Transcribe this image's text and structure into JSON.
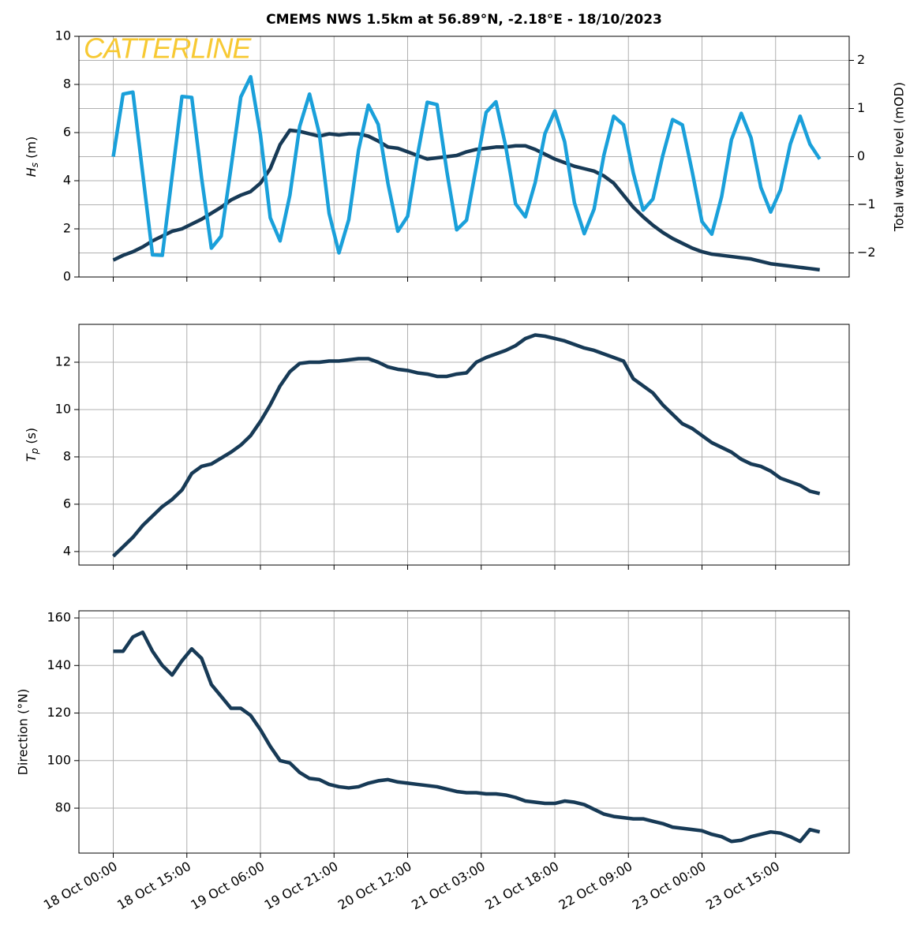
{
  "chart_data": [
    {
      "type": "line",
      "title": "CMEMS NWS 1.5km at 56.89°N, -2.18°E - 18/10/2023",
      "annotation": "CATTERLINE",
      "annotation_color": "#f7c933",
      "ylabel": "Hs (m)",
      "y2label": "Total water level (mOD)",
      "grid": true,
      "x": [
        "18 Oct 00:00",
        "18 Oct 02:00",
        "18 Oct 04:00",
        "18 Oct 06:00",
        "18 Oct 08:00",
        "18 Oct 10:00",
        "18 Oct 12:00",
        "18 Oct 14:00",
        "18 Oct 16:00",
        "18 Oct 18:00",
        "18 Oct 20:00",
        "18 Oct 22:00",
        "19 Oct 00:00",
        "19 Oct 02:00",
        "19 Oct 04:00",
        "19 Oct 06:00",
        "19 Oct 08:00",
        "19 Oct 10:00",
        "19 Oct 12:00",
        "19 Oct 14:00",
        "19 Oct 16:00",
        "19 Oct 18:00",
        "19 Oct 20:00",
        "19 Oct 22:00",
        "20 Oct 00:00",
        "20 Oct 02:00",
        "20 Oct 04:00",
        "20 Oct 06:00",
        "20 Oct 08:00",
        "20 Oct 10:00",
        "20 Oct 12:00",
        "20 Oct 14:00",
        "20 Oct 16:00",
        "20 Oct 18:00",
        "20 Oct 20:00",
        "20 Oct 22:00",
        "21 Oct 00:00",
        "21 Oct 02:00",
        "21 Oct 04:00",
        "21 Oct 06:00",
        "21 Oct 08:00",
        "21 Oct 10:00",
        "21 Oct 12:00",
        "21 Oct 14:00",
        "21 Oct 16:00",
        "21 Oct 18:00",
        "21 Oct 20:00",
        "21 Oct 22:00",
        "22 Oct 00:00",
        "22 Oct 02:00",
        "22 Oct 04:00",
        "22 Oct 06:00",
        "22 Oct 08:00",
        "22 Oct 10:00",
        "22 Oct 12:00",
        "22 Oct 14:00",
        "22 Oct 16:00",
        "22 Oct 18:00",
        "22 Oct 20:00",
        "22 Oct 22:00",
        "23 Oct 00:00",
        "23 Oct 02:00",
        "23 Oct 04:00",
        "23 Oct 06:00",
        "23 Oct 08:00",
        "23 Oct 10:00",
        "23 Oct 12:00",
        "23 Oct 14:00",
        "23 Oct 16:00",
        "23 Oct 18:00",
        "23 Oct 20:00",
        "23 Oct 22:00",
        "24 Oct 00:00"
      ],
      "xlim": [
        "17 Oct 17:00",
        "24 Oct 06:00"
      ],
      "xticks": [
        "18 Oct 00:00",
        "18 Oct 15:00",
        "19 Oct 06:00",
        "19 Oct 21:00",
        "20 Oct 12:00",
        "21 Oct 03:00",
        "21 Oct 18:00",
        "22 Oct 09:00",
        "23 Oct 00:00",
        "23 Oct 15:00"
      ],
      "ylim": [
        0,
        10
      ],
      "yticks": [
        0,
        2,
        4,
        6,
        8,
        10
      ],
      "y2lim": [
        -2.5,
        2.5
      ],
      "y2ticks": [
        {
          "value": -2,
          "label": "−2"
        },
        {
          "value": -1,
          "label": "−1"
        },
        0,
        1,
        2
      ],
      "series": [
        {
          "color": "#173a56",
          "values": [
            0.7,
            0.9,
            1.05,
            1.25,
            1.5,
            1.7,
            1.9,
            2.0,
            2.2,
            2.4,
            2.65,
            2.9,
            3.2,
            3.4,
            3.55,
            3.9,
            4.5,
            5.5,
            6.1,
            6.05,
            5.95,
            5.85,
            5.95,
            5.9,
            5.95,
            5.95,
            5.85,
            5.65,
            5.4,
            5.35,
            5.2,
            5.05,
            4.9,
            4.95,
            5.0,
            5.05,
            5.2,
            5.3,
            5.35,
            5.4,
            5.4,
            5.45,
            5.45,
            5.3,
            5.1,
            4.9,
            4.75,
            4.6,
            4.5,
            4.4,
            4.2,
            3.9,
            3.4,
            2.9,
            2.5,
            2.15,
            1.85,
            1.6,
            1.4,
            1.2,
            1.05,
            0.95,
            0.9,
            0.85,
            0.8,
            0.75,
            0.65,
            0.55,
            0.5,
            0.45,
            0.4,
            0.35,
            0.3
          ]
        },
        {
          "color": "#1aa0da",
          "axis": "y2",
          "values": [
            0,
            1.3,
            1.34,
            -0.35,
            -2.04,
            -2.05,
            -0.4,
            1.25,
            1.23,
            -0.44,
            -1.9,
            -1.65,
            -0.23,
            1.24,
            1.66,
            0.45,
            -1.27,
            -1.75,
            -0.8,
            0.63,
            1.3,
            0.48,
            -1.18,
            -2.0,
            -1.31,
            0.14,
            1.07,
            0.67,
            -0.56,
            -1.55,
            -1.24,
            0.02,
            1.13,
            1.08,
            -0.31,
            -1.52,
            -1.32,
            -0.2,
            0.92,
            1.14,
            0.21,
            -0.98,
            -1.25,
            -0.54,
            0.48,
            0.95,
            0.31,
            -0.96,
            -1.6,
            -1.09,
            0.03,
            0.84,
            0.66,
            -0.34,
            -1.11,
            -0.88,
            0.02,
            0.77,
            0.66,
            -0.31,
            -1.35,
            -1.61,
            -0.83,
            0.35,
            0.9,
            0.39,
            -0.64,
            -1.15,
            -0.69,
            0.26,
            0.84,
            0.26,
            -0.05
          ]
        }
      ]
    },
    {
      "type": "line",
      "ylabel": "Tp (s)",
      "grid": true,
      "x": [
        "18 Oct 00:00",
        "18 Oct 02:00",
        "18 Oct 04:00",
        "18 Oct 06:00",
        "18 Oct 08:00",
        "18 Oct 10:00",
        "18 Oct 12:00",
        "18 Oct 14:00",
        "18 Oct 16:00",
        "18 Oct 18:00",
        "18 Oct 20:00",
        "18 Oct 22:00",
        "19 Oct 00:00",
        "19 Oct 02:00",
        "19 Oct 04:00",
        "19 Oct 06:00",
        "19 Oct 08:00",
        "19 Oct 10:00",
        "19 Oct 12:00",
        "19 Oct 14:00",
        "19 Oct 16:00",
        "19 Oct 18:00",
        "19 Oct 20:00",
        "19 Oct 22:00",
        "20 Oct 00:00",
        "20 Oct 02:00",
        "20 Oct 04:00",
        "20 Oct 06:00",
        "20 Oct 08:00",
        "20 Oct 10:00",
        "20 Oct 12:00",
        "20 Oct 14:00",
        "20 Oct 16:00",
        "20 Oct 18:00",
        "20 Oct 20:00",
        "20 Oct 22:00",
        "21 Oct 00:00",
        "21 Oct 02:00",
        "21 Oct 04:00",
        "21 Oct 06:00",
        "21 Oct 08:00",
        "21 Oct 10:00",
        "21 Oct 12:00",
        "21 Oct 14:00",
        "21 Oct 16:00",
        "21 Oct 18:00",
        "21 Oct 20:00",
        "21 Oct 22:00",
        "22 Oct 00:00",
        "22 Oct 02:00",
        "22 Oct 04:00",
        "22 Oct 06:00",
        "22 Oct 08:00",
        "22 Oct 10:00",
        "22 Oct 12:00",
        "22 Oct 14:00",
        "22 Oct 16:00",
        "22 Oct 18:00",
        "22 Oct 20:00",
        "22 Oct 22:00",
        "23 Oct 00:00",
        "23 Oct 02:00",
        "23 Oct 04:00",
        "23 Oct 06:00",
        "23 Oct 08:00",
        "23 Oct 10:00",
        "23 Oct 12:00",
        "23 Oct 14:00",
        "23 Oct 16:00",
        "23 Oct 18:00",
        "23 Oct 20:00",
        "23 Oct 22:00",
        "24 Oct 00:00"
      ],
      "xlim": [
        "17 Oct 17:00",
        "24 Oct 06:00"
      ],
      "xticks": [
        "18 Oct 00:00",
        "18 Oct 15:00",
        "19 Oct 06:00",
        "19 Oct 21:00",
        "20 Oct 12:00",
        "21 Oct 03:00",
        "21 Oct 18:00",
        "22 Oct 09:00",
        "23 Oct 00:00",
        "23 Oct 15:00"
      ],
      "ylim": [
        3.43,
        13.6
      ],
      "yticks": [
        4,
        6,
        8,
        10,
        12
      ],
      "series": [
        {
          "color": "#173a56",
          "values": [
            3.8,
            4.2,
            4.6,
            5.1,
            5.5,
            5.9,
            6.2,
            6.6,
            7.3,
            7.6,
            7.7,
            7.95,
            8.2,
            8.5,
            8.9,
            9.5,
            10.2,
            11.0,
            11.6,
            11.95,
            12.0,
            12.0,
            12.05,
            12.05,
            12.1,
            12.15,
            12.15,
            12.0,
            11.8,
            11.7,
            11.65,
            11.55,
            11.5,
            11.4,
            11.4,
            11.5,
            11.55,
            12.0,
            12.2,
            12.35,
            12.5,
            12.7,
            13.0,
            13.15,
            13.1,
            13.0,
            12.9,
            12.75,
            12.6,
            12.5,
            12.35,
            12.2,
            12.05,
            11.3,
            11.0,
            10.7,
            10.2,
            9.8,
            9.4,
            9.2,
            8.9,
            8.6,
            8.4,
            8.2,
            7.9,
            7.7,
            7.6,
            7.4,
            7.1,
            6.95,
            6.8,
            6.55,
            6.45
          ]
        }
      ]
    },
    {
      "type": "line",
      "ylabel": "Direction (°N)",
      "grid": true,
      "x": [
        "18 Oct 00:00",
        "18 Oct 02:00",
        "18 Oct 04:00",
        "18 Oct 06:00",
        "18 Oct 08:00",
        "18 Oct 10:00",
        "18 Oct 12:00",
        "18 Oct 14:00",
        "18 Oct 16:00",
        "18 Oct 18:00",
        "18 Oct 20:00",
        "18 Oct 22:00",
        "19 Oct 00:00",
        "19 Oct 02:00",
        "19 Oct 04:00",
        "19 Oct 06:00",
        "19 Oct 08:00",
        "19 Oct 10:00",
        "19 Oct 12:00",
        "19 Oct 14:00",
        "19 Oct 16:00",
        "19 Oct 18:00",
        "19 Oct 20:00",
        "19 Oct 22:00",
        "20 Oct 00:00",
        "20 Oct 02:00",
        "20 Oct 04:00",
        "20 Oct 06:00",
        "20 Oct 08:00",
        "20 Oct 10:00",
        "20 Oct 12:00",
        "20 Oct 14:00",
        "20 Oct 16:00",
        "20 Oct 18:00",
        "20 Oct 20:00",
        "20 Oct 22:00",
        "21 Oct 00:00",
        "21 Oct 02:00",
        "21 Oct 04:00",
        "21 Oct 06:00",
        "21 Oct 08:00",
        "21 Oct 10:00",
        "21 Oct 12:00",
        "21 Oct 14:00",
        "21 Oct 16:00",
        "21 Oct 18:00",
        "21 Oct 20:00",
        "21 Oct 22:00",
        "22 Oct 00:00",
        "22 Oct 02:00",
        "22 Oct 04:00",
        "22 Oct 06:00",
        "22 Oct 08:00",
        "22 Oct 10:00",
        "22 Oct 12:00",
        "22 Oct 14:00",
        "22 Oct 16:00",
        "22 Oct 18:00",
        "22 Oct 20:00",
        "22 Oct 22:00",
        "23 Oct 00:00",
        "23 Oct 02:00",
        "23 Oct 04:00",
        "23 Oct 06:00",
        "23 Oct 08:00",
        "23 Oct 10:00",
        "23 Oct 12:00",
        "23 Oct 14:00",
        "23 Oct 16:00",
        "23 Oct 18:00",
        "23 Oct 20:00",
        "23 Oct 22:00",
        "24 Oct 00:00"
      ],
      "xlim": [
        "17 Oct 17:00",
        "24 Oct 06:00"
      ],
      "xticks": [
        "18 Oct 00:00",
        "18 Oct 15:00",
        "19 Oct 06:00",
        "19 Oct 21:00",
        "20 Oct 12:00",
        "21 Oct 03:00",
        "21 Oct 18:00",
        "22 Oct 09:00",
        "23 Oct 00:00",
        "23 Oct 15:00"
      ],
      "ylim": [
        61.1,
        163
      ],
      "yticks": [
        80,
        100,
        120,
        140,
        160
      ],
      "series": [
        {
          "color": "#173a56",
          "values": [
            146,
            146,
            152,
            154,
            146,
            140,
            136,
            142,
            147,
            143,
            132,
            127,
            122,
            122,
            119,
            113,
            106,
            100,
            99,
            95,
            92.5,
            92,
            90,
            89,
            88.5,
            89,
            90.5,
            91.5,
            92,
            91,
            90.5,
            90,
            89.5,
            89,
            88,
            87,
            86.5,
            86.5,
            86,
            86,
            85.5,
            84.5,
            83,
            82.5,
            82,
            82,
            83,
            82.5,
            81.5,
            79.5,
            77.5,
            76.5,
            76,
            75.5,
            75.5,
            74.5,
            73.5,
            72,
            71.5,
            71,
            70.5,
            69,
            68,
            66,
            66.5,
            68,
            69,
            70,
            69.5,
            68,
            66,
            71,
            70
          ]
        }
      ]
    }
  ]
}
